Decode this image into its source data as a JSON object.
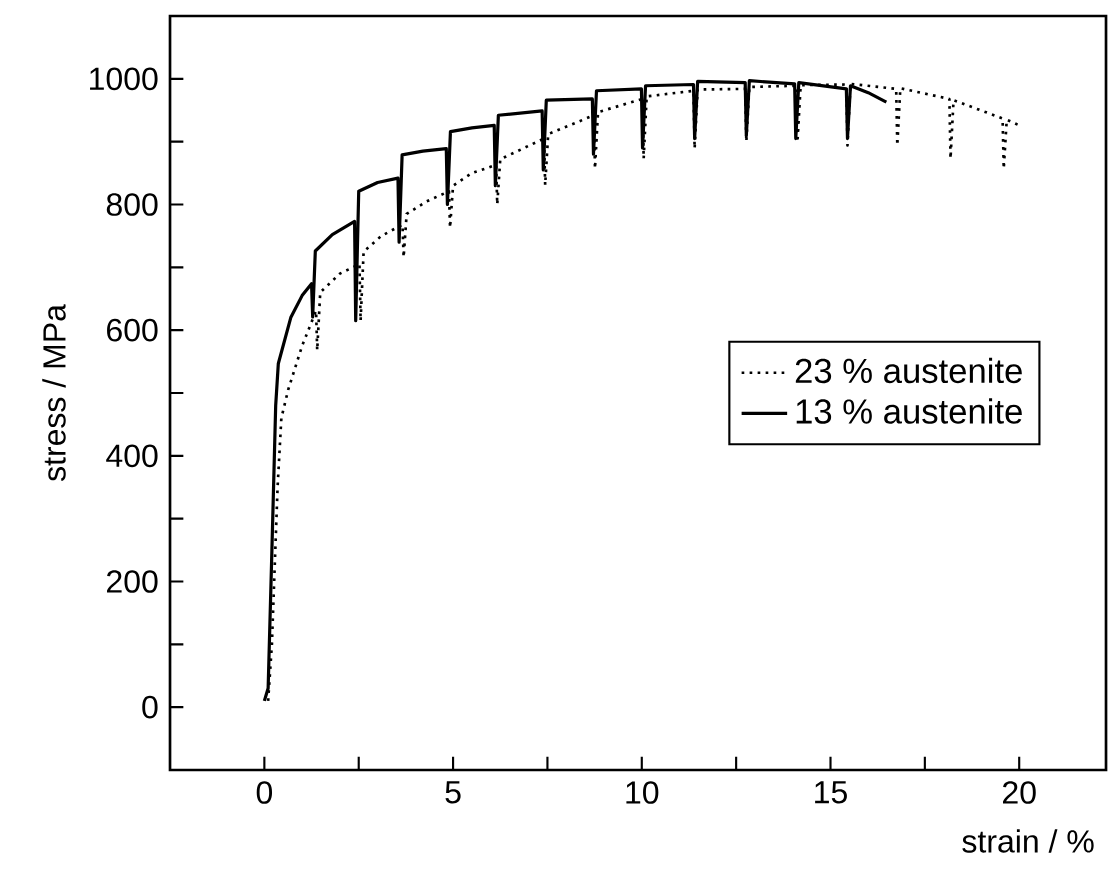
{
  "chart_data": {
    "type": "line",
    "xlabel": "strain / %",
    "ylabel": "stress / MPa",
    "xlim": [
      -2.5,
      22.3
    ],
    "ylim": [
      -100,
      1100
    ],
    "xticks": [
      0,
      {
        "value": 2.5,
        "label": null
      },
      5,
      {
        "value": 7.5,
        "label": null
      },
      10,
      {
        "value": 12.5,
        "label": null
      },
      15,
      {
        "value": 17.5,
        "label": null
      },
      20
    ],
    "yticks": [
      0,
      {
        "value": 100,
        "label": null
      },
      200,
      {
        "value": 300,
        "label": null
      },
      400,
      {
        "value": 500,
        "label": null
      },
      600,
      {
        "value": 700,
        "label": null
      },
      800,
      {
        "value": 900,
        "label": null
      },
      1000
    ],
    "legend": "right",
    "series": [
      {
        "name": "23 % austenite",
        "color": "#000000",
        "line_style": "dotted",
        "x": [
          0.1,
          0.2,
          0.35,
          0.45,
          0.63,
          1.0,
          1.37,
          1.4,
          1.48,
          2.0,
          2.52,
          2.55,
          2.63,
          3.1,
          3.66,
          3.69,
          3.77,
          4.3,
          4.89,
          4.92,
          5.0,
          5.5,
          6.14,
          6.17,
          6.25,
          7.41,
          7.44,
          7.52,
          8.73,
          8.76,
          8.84,
          10.02,
          10.05,
          10.13,
          11.37,
          11.4,
          11.48,
          12.74,
          12.77,
          12.85,
          14.1,
          14.13,
          14.21,
          15.42,
          15.45,
          15.53,
          16.74,
          16.77,
          16.85,
          18.15,
          18.18,
          18.26,
          19.56,
          19.59,
          19.67,
          20.0
        ],
        "values": [
          10,
          100,
          350,
          460,
          505,
          575,
          631,
          568,
          660,
          690,
          705,
          615,
          725,
          750,
          768,
          716,
          785,
          805,
          821,
          763,
          830,
          850,
          863,
          800,
          872,
          905,
          831,
          912,
          942,
          857,
          947,
          968,
          873,
          972,
          981,
          889,
          983,
          984,
          900,
          987,
          989,
          905,
          990,
          991,
          894,
          992,
          984,
          894,
          985,
          968,
          873,
          966,
          937,
          857,
          935,
          926
        ]
      },
      {
        "name": "13 % austenite",
        "color": "#000000",
        "line_style": "solid",
        "x": [
          0,
          0.1,
          0.2,
          0.3,
          0.37,
          0.7,
          1.0,
          1.25,
          1.28,
          1.35,
          1.8,
          2.39,
          2.42,
          2.5,
          3.0,
          3.54,
          3.57,
          3.65,
          4.2,
          4.82,
          4.85,
          4.93,
          5.5,
          6.09,
          6.12,
          6.2,
          7.36,
          7.39,
          7.47,
          8.69,
          8.72,
          8.8,
          9.99,
          10.02,
          10.1,
          11.37,
          11.4,
          11.48,
          12.74,
          12.77,
          12.85,
          14.05,
          14.08,
          14.16,
          15.42,
          15.45,
          15.53,
          16.0,
          16.48
        ],
        "values": [
          10,
          30,
          250,
          480,
          547,
          620,
          655,
          674,
          621,
          726,
          752,
          773,
          615,
          821,
          835,
          842,
          740,
          879,
          885,
          889,
          800,
          916,
          922,
          926,
          830,
          942,
          949,
          855,
          966,
          968,
          880,
          981,
          984,
          890,
          989,
          991,
          905,
          996,
          994,
          910,
          997,
          992,
          905,
          994,
          984,
          905,
          989,
          978,
          963
        ]
      }
    ]
  }
}
